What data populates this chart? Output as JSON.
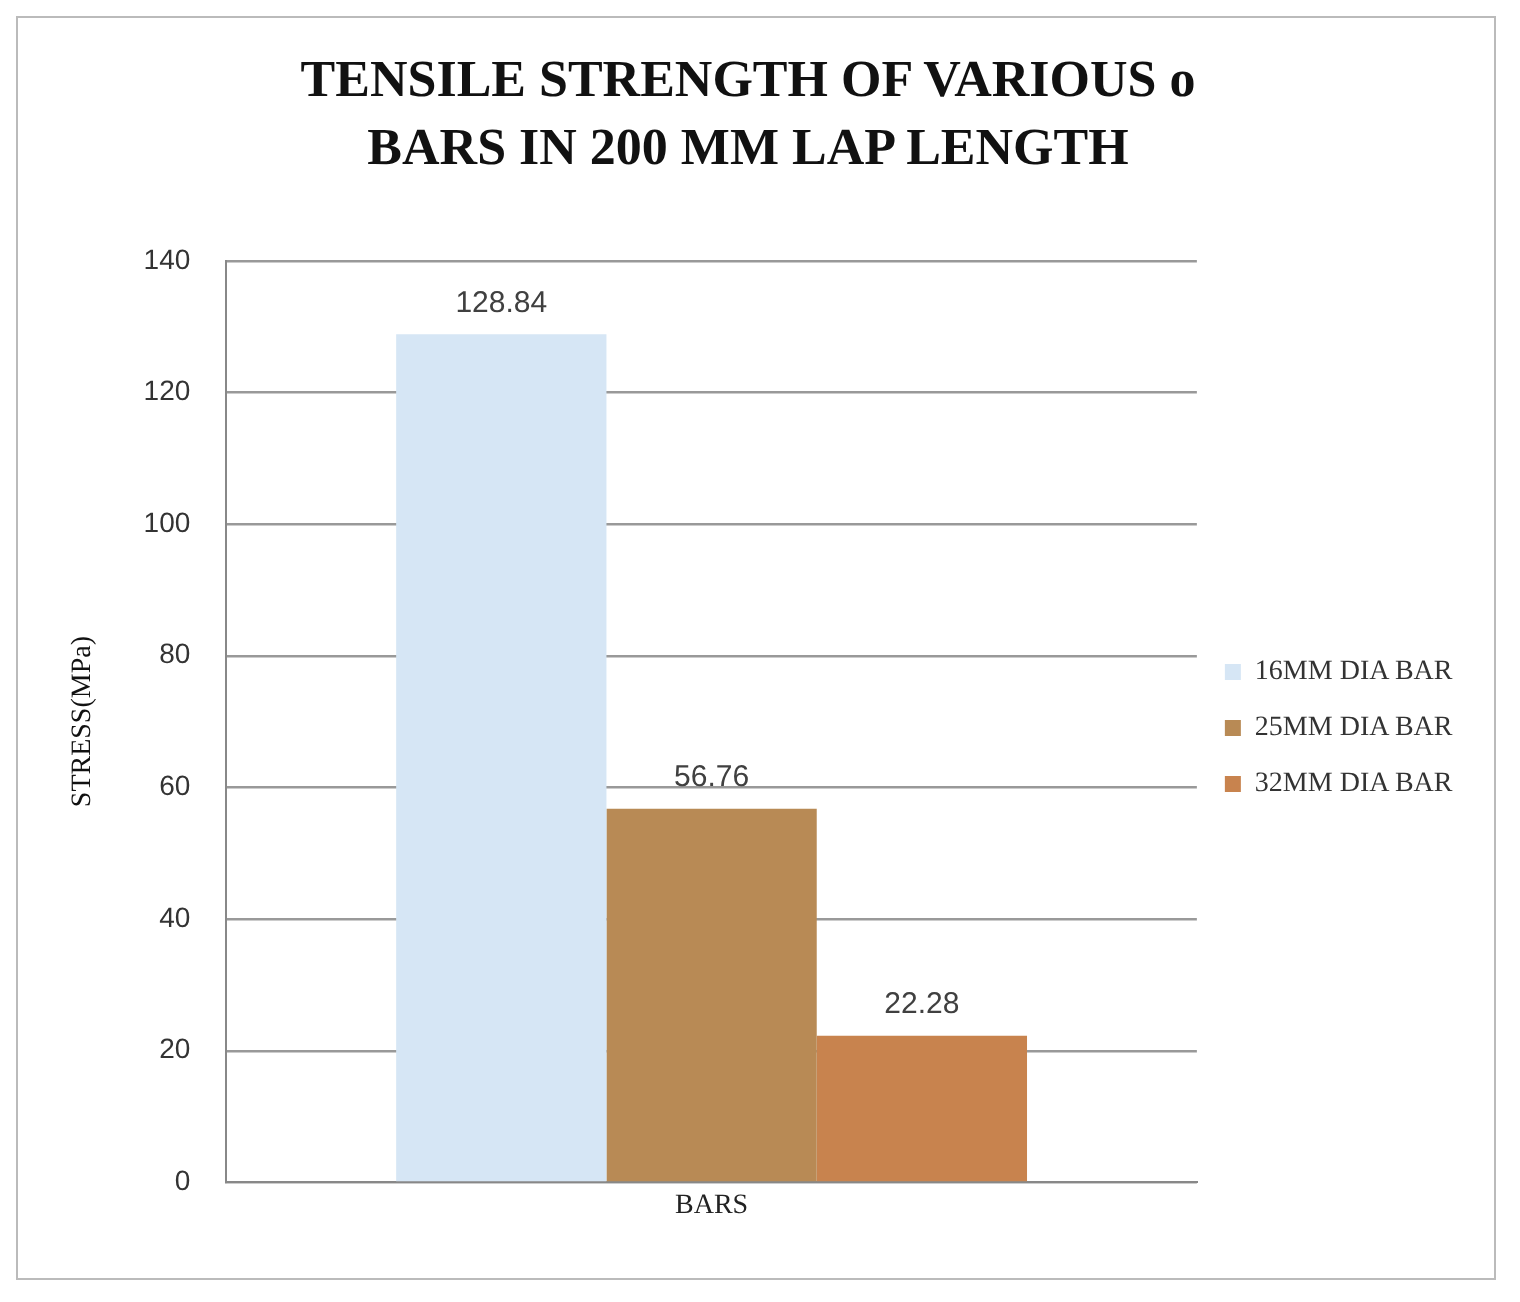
{
  "chart_data": {
    "type": "bar",
    "title": "TENSILE STRENGTH OF VARIOUS o BARS IN 200 MM LAP  LENGTH",
    "ylabel": "STRESS(MPa)",
    "categories": [
      "BARS"
    ],
    "series": [
      {
        "name": "16MM DIA BAR",
        "color": "#d6e6f5",
        "values": [
          128.84
        ]
      },
      {
        "name": "25MM DIA BAR",
        "color": "#b88a55",
        "values": [
          56.76
        ]
      },
      {
        "name": "32MM DIA BAR",
        "color": "#c8834e",
        "values": [
          22.28
        ]
      }
    ],
    "ylim": [
      0,
      140
    ],
    "yticks": [
      0,
      20,
      40,
      60,
      80,
      100,
      120,
      140
    ],
    "grid": "y",
    "legend": "right",
    "data_labels": true
  }
}
